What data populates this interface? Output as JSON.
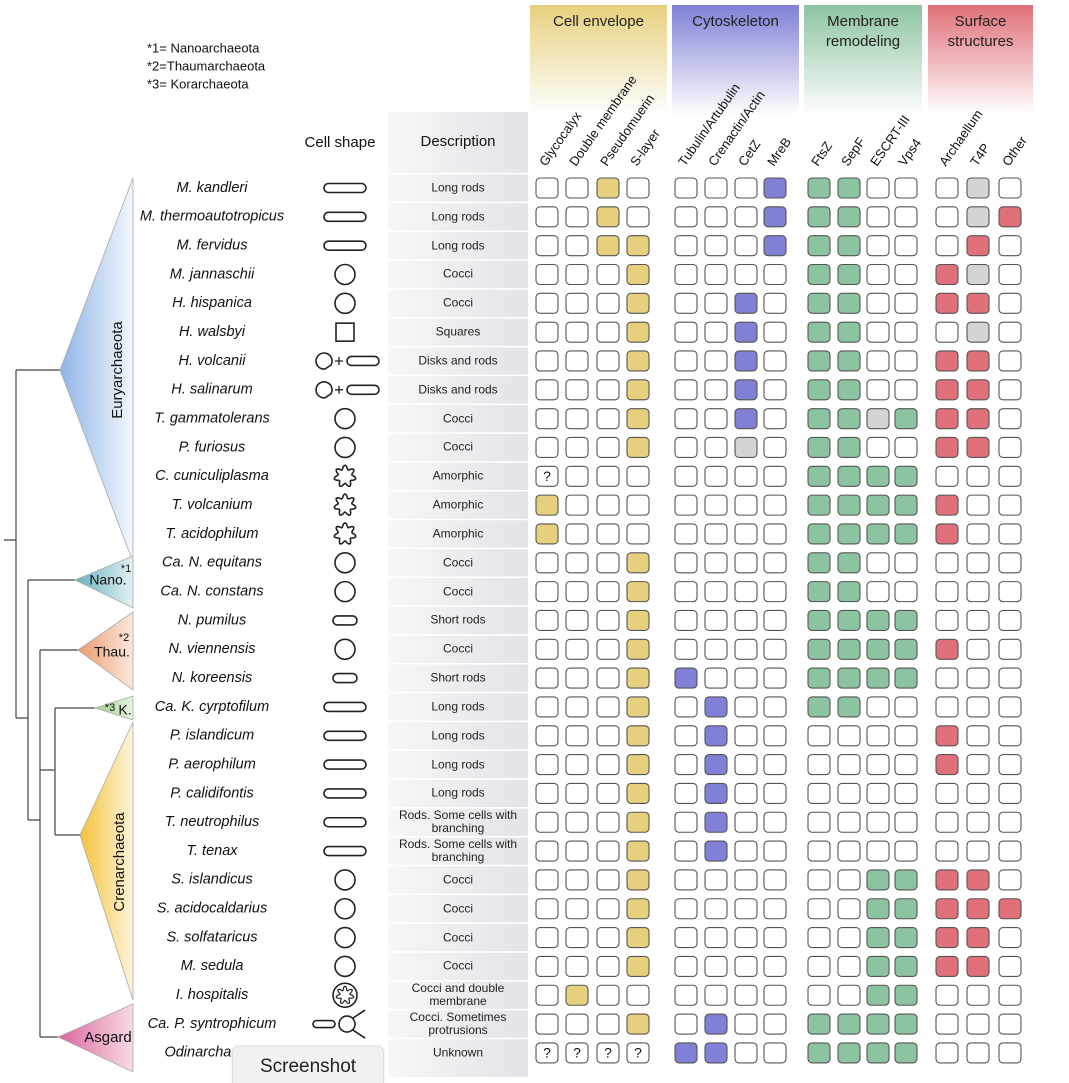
{
  "legend": [
    "*1= Nanoarchaeota",
    "*2=Thaumarchaeota",
    "*3= Korarchaeota"
  ],
  "headers": {
    "shape": "Cell shape",
    "description": "Description"
  },
  "groups": [
    {
      "title": "Cell envelope",
      "color": "#e6d07e",
      "columns": [
        "Glycocalyx",
        "Double membrane",
        "Pseudomuerin",
        "S-layer"
      ]
    },
    {
      "title": "Cytoskeleton",
      "color": "#7f80d6",
      "columns": [
        "Tubulin/Artubulin",
        "Crenactin/Actin",
        "CetZ",
        "MreB"
      ]
    },
    {
      "title": "Membrane remodeling",
      "color": "#8cc3a0",
      "columns": [
        "FtsZ",
        "SepF",
        "ESCRT-III",
        "Vps4"
      ]
    },
    {
      "title": "Surface structures",
      "color": "#e07079",
      "columns": [
        "Archaellum",
        "T4P",
        "Other"
      ]
    }
  ],
  "clades": [
    {
      "label": "Euryarchaeota"
    },
    {
      "label": "Nano.",
      "note": "*1"
    },
    {
      "label": "Thau.",
      "note": "*2"
    },
    {
      "label": "K.",
      "note": "*3"
    },
    {
      "label": "Crenarchaeota"
    },
    {
      "label": "Asgard"
    }
  ],
  "rows": [
    {
      "name": "M. kandleri",
      "description": "Long rods",
      "cells": [
        0,
        0,
        1,
        0,
        0,
        0,
        0,
        1,
        1,
        1,
        0,
        0,
        0,
        2,
        0
      ]
    },
    {
      "name": "M. thermoautotropicus",
      "description": "Long rods",
      "cells": [
        0,
        0,
        1,
        0,
        0,
        0,
        0,
        1,
        1,
        1,
        0,
        0,
        0,
        2,
        1
      ]
    },
    {
      "name": "M. fervidus",
      "description": "Long rods",
      "cells": [
        0,
        0,
        1,
        1,
        0,
        0,
        0,
        1,
        1,
        1,
        0,
        0,
        0,
        1,
        0
      ]
    },
    {
      "name": "M. jannaschii",
      "description": "Cocci",
      "cells": [
        0,
        0,
        0,
        1,
        0,
        0,
        0,
        0,
        1,
        1,
        0,
        0,
        1,
        2,
        0
      ]
    },
    {
      "name": "H. hispanica",
      "description": "Cocci",
      "cells": [
        0,
        0,
        0,
        1,
        0,
        0,
        1,
        0,
        1,
        1,
        0,
        0,
        1,
        1,
        0
      ]
    },
    {
      "name": "H. walsbyi",
      "description": "Squares",
      "cells": [
        0,
        0,
        0,
        1,
        0,
        0,
        1,
        0,
        1,
        1,
        0,
        0,
        0,
        2,
        0
      ]
    },
    {
      "name": "H. volcanii",
      "description": "Disks and rods",
      "cells": [
        0,
        0,
        0,
        1,
        0,
        0,
        1,
        0,
        1,
        1,
        0,
        0,
        1,
        1,
        0
      ]
    },
    {
      "name": "H. salinarum",
      "description": "Disks and rods",
      "cells": [
        0,
        0,
        0,
        1,
        0,
        0,
        1,
        0,
        1,
        1,
        0,
        0,
        1,
        1,
        0
      ]
    },
    {
      "name": "T. gammatolerans",
      "description": "Cocci",
      "cells": [
        0,
        0,
        0,
        1,
        0,
        0,
        1,
        0,
        1,
        1,
        2,
        1,
        1,
        1,
        0
      ]
    },
    {
      "name": "P. furiosus",
      "description": "Cocci",
      "cells": [
        0,
        0,
        0,
        1,
        0,
        0,
        2,
        0,
        1,
        1,
        0,
        0,
        1,
        1,
        0
      ]
    },
    {
      "name": "C. cuniculiplasma",
      "description": "Amorphic",
      "cells": [
        "?",
        0,
        0,
        0,
        0,
        0,
        0,
        0,
        1,
        1,
        1,
        1,
        0,
        0,
        0
      ]
    },
    {
      "name": "T. volcanium",
      "description": "Amorphic",
      "cells": [
        1,
        0,
        0,
        0,
        0,
        0,
        0,
        0,
        1,
        1,
        1,
        1,
        1,
        0,
        0
      ]
    },
    {
      "name": "T. acidophilum",
      "description": "Amorphic",
      "cells": [
        1,
        0,
        0,
        0,
        0,
        0,
        0,
        0,
        1,
        1,
        1,
        1,
        1,
        0,
        0
      ]
    },
    {
      "name": "Ca. N. equitans",
      "description": "Cocci",
      "cells": [
        0,
        0,
        0,
        1,
        0,
        0,
        0,
        0,
        1,
        1,
        0,
        0,
        0,
        0,
        0
      ]
    },
    {
      "name": "Ca. N. constans",
      "description": "Cocci",
      "cells": [
        0,
        0,
        0,
        1,
        0,
        0,
        0,
        0,
        1,
        1,
        0,
        0,
        0,
        0,
        0
      ]
    },
    {
      "name": "N. pumilus",
      "description": "Short rods",
      "cells": [
        0,
        0,
        0,
        1,
        0,
        0,
        0,
        0,
        1,
        1,
        1,
        1,
        0,
        0,
        0
      ]
    },
    {
      "name": "N. viennensis",
      "description": "Cocci",
      "cells": [
        0,
        0,
        0,
        1,
        0,
        0,
        0,
        0,
        1,
        1,
        1,
        1,
        1,
        0,
        0
      ]
    },
    {
      "name": "N. koreensis",
      "description": "Short rods",
      "cells": [
        0,
        0,
        0,
        1,
        1,
        0,
        0,
        0,
        1,
        1,
        1,
        1,
        0,
        0,
        0
      ]
    },
    {
      "name": "Ca. K. cyrptofilum",
      "description": "Long rods",
      "cells": [
        0,
        0,
        0,
        1,
        0,
        1,
        0,
        0,
        1,
        1,
        0,
        0,
        0,
        0,
        0
      ]
    },
    {
      "name": "P. islandicum",
      "description": "Long rods",
      "cells": [
        0,
        0,
        0,
        1,
        0,
        1,
        0,
        0,
        0,
        0,
        0,
        0,
        1,
        0,
        0
      ]
    },
    {
      "name": "P. aerophilum",
      "description": "Long rods",
      "cells": [
        0,
        0,
        0,
        1,
        0,
        1,
        0,
        0,
        0,
        0,
        0,
        0,
        1,
        0,
        0
      ]
    },
    {
      "name": "P. calidifontis",
      "description": "Long rods",
      "cells": [
        0,
        0,
        0,
        1,
        0,
        1,
        0,
        0,
        0,
        0,
        0,
        0,
        0,
        0,
        0
      ]
    },
    {
      "name": "T. neutrophilus",
      "description": "Rods. Some cells with branching",
      "cells": [
        0,
        0,
        0,
        1,
        0,
        1,
        0,
        0,
        0,
        0,
        0,
        0,
        0,
        0,
        0
      ]
    },
    {
      "name": "T. tenax",
      "description": "Rods. Some  cells with branching",
      "cells": [
        0,
        0,
        0,
        1,
        0,
        1,
        0,
        0,
        0,
        0,
        0,
        0,
        0,
        0,
        0
      ]
    },
    {
      "name": "S. islandicus",
      "description": "Cocci",
      "cells": [
        0,
        0,
        0,
        1,
        0,
        0,
        0,
        0,
        0,
        0,
        1,
        1,
        1,
        1,
        0
      ]
    },
    {
      "name": "S. acidocaldarius",
      "description": "Cocci",
      "cells": [
        0,
        0,
        0,
        1,
        0,
        0,
        0,
        0,
        0,
        0,
        1,
        1,
        1,
        1,
        1
      ]
    },
    {
      "name": "S. solfataricus",
      "description": "Cocci",
      "cells": [
        0,
        0,
        0,
        1,
        0,
        0,
        0,
        0,
        0,
        0,
        1,
        1,
        1,
        1,
        0
      ]
    },
    {
      "name": "M. sedula",
      "description": "Cocci",
      "cells": [
        0,
        0,
        0,
        1,
        0,
        0,
        0,
        0,
        0,
        0,
        1,
        1,
        1,
        1,
        0
      ]
    },
    {
      "name": "I. hospitalis",
      "description": "Cocci and double membrane",
      "cells": [
        0,
        1,
        0,
        0,
        0,
        0,
        0,
        0,
        0,
        0,
        1,
        1,
        0,
        0,
        0
      ]
    },
    {
      "name": "Ca. P. syntrophicum",
      "description": "Cocci. Sometimes protrusions",
      "cells": [
        0,
        0,
        0,
        1,
        0,
        1,
        0,
        0,
        1,
        1,
        1,
        1,
        0,
        0,
        0
      ]
    },
    {
      "name": "Odinarchaeota",
      "description": "Unknown",
      "cells": [
        "?",
        "?",
        "?",
        "?",
        1,
        1,
        0,
        0,
        1,
        1,
        1,
        1,
        0,
        0,
        0
      ]
    }
  ],
  "overlay_button": "Screenshot"
}
